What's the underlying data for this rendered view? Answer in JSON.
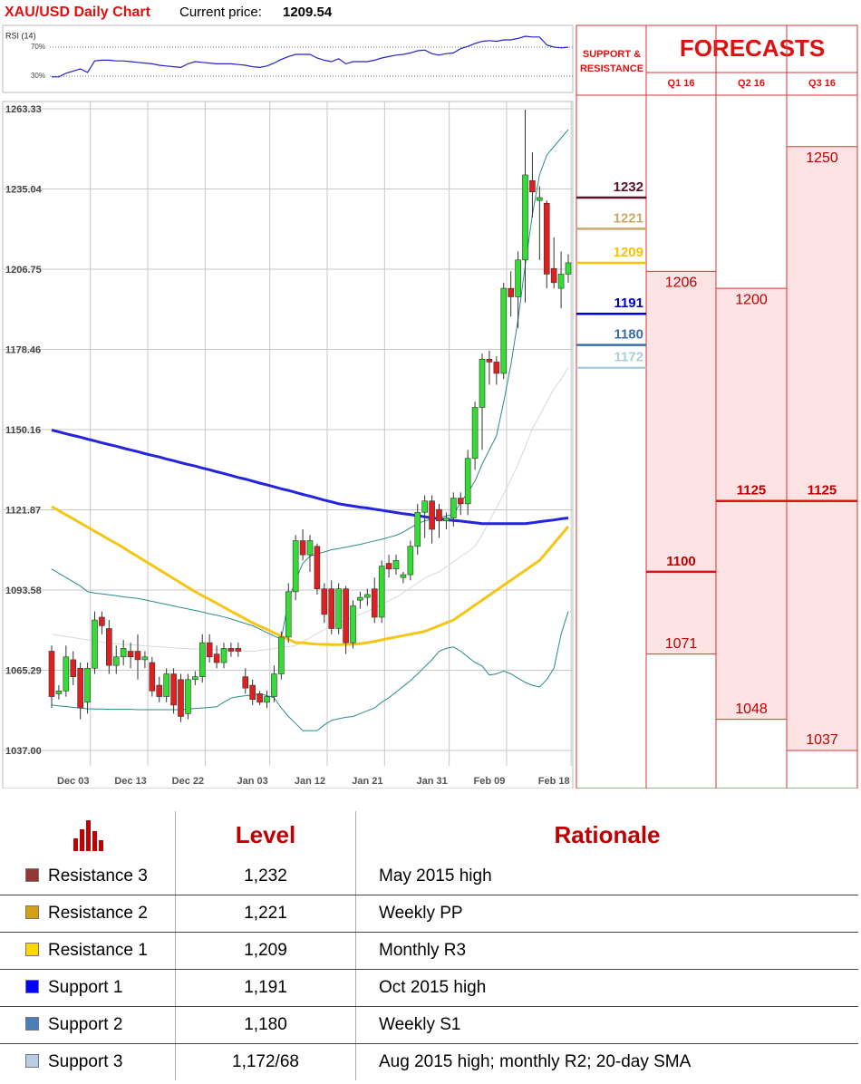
{
  "header": {
    "title": "XAU/USD Daily Chart",
    "price_label": "Current price:",
    "price": 1209.54
  },
  "chart_data": [
    {
      "type": "candlestick",
      "categories": [
        null,
        null,
        null,
        "Dec 03",
        null,
        null,
        null,
        null,
        null,
        null,
        null,
        "Dec 13",
        null,
        null,
        null,
        null,
        null,
        null,
        null,
        "Dec 22",
        null,
        null,
        null,
        null,
        null,
        null,
        null,
        null,
        "Jan 03",
        null,
        null,
        null,
        null,
        null,
        null,
        null,
        "Jan 12",
        null,
        null,
        null,
        null,
        null,
        null,
        null,
        "Jan 21",
        null,
        null,
        null,
        null,
        null,
        null,
        null,
        null,
        "Jan 31",
        null,
        null,
        null,
        null,
        null,
        null,
        null,
        "Feb 09",
        null,
        null,
        null,
        null,
        null,
        null,
        null,
        null,
        "Feb 18",
        null,
        null
      ],
      "open": [
        1072,
        1057,
        1058,
        1069,
        1066,
        1054,
        1066,
        1084,
        1080,
        1067,
        1070,
        1072,
        1072,
        1069,
        1068,
        1060,
        1056,
        1064,
        1062,
        1050,
        1062,
        1063,
        1075,
        1071,
        1068,
        1073,
        1073,
        1063,
        1060,
        1057,
        1054,
        1056,
        1064,
        1077,
        1093,
        1111,
        1106,
        1109,
        1094,
        1094,
        1080,
        1094,
        1075,
        1090,
        1091,
        1094,
        1084,
        1103,
        1101,
        1098,
        1099,
        1109,
        1121,
        1125,
        1122,
        1118,
        1119,
        1126,
        1124,
        1140,
        1158,
        1175,
        1174,
        1170,
        1200,
        1197,
        1210,
        1238,
        1231,
        1230,
        1207,
        1200,
        1205
      ],
      "high": [
        1074,
        1060,
        1074,
        1072,
        1068,
        1068,
        1086,
        1086,
        1083,
        1074,
        1076,
        1075,
        1078,
        1072,
        1070,
        1063,
        1066,
        1066,
        1064,
        1064,
        1065,
        1078,
        1078,
        1074,
        1075,
        1075,
        1075,
        1066,
        1062,
        1058,
        1058,
        1067,
        1079,
        1096,
        1113,
        1115,
        1113,
        1110,
        1096,
        1097,
        1096,
        1095,
        1090,
        1093,
        1094,
        1098,
        1104,
        1106,
        1106,
        1100,
        1111,
        1124,
        1127,
        1127,
        1124,
        1121,
        1128,
        1128,
        1143,
        1160,
        1177,
        1178,
        1176,
        1202,
        1206,
        1213,
        1263,
        1248,
        1236,
        1231,
        1218,
        1213,
        1212
      ],
      "low": [
        1052,
        1055,
        1056,
        1060,
        1048,
        1050,
        1064,
        1078,
        1064,
        1064,
        1067,
        1066,
        1062,
        1066,
        1056,
        1054,
        1054,
        1050,
        1047,
        1048,
        1060,
        1061,
        1068,
        1066,
        1066,
        1070,
        1070,
        1057,
        1053,
        1053,
        1052,
        1054,
        1062,
        1075,
        1090,
        1104,
        1100,
        1092,
        1082,
        1078,
        1078,
        1071,
        1073,
        1087,
        1088,
        1082,
        1082,
        1098,
        1099,
        1096,
        1097,
        1106,
        1112,
        1110,
        1112,
        1115,
        1116,
        1120,
        1120,
        1136,
        1143,
        1166,
        1166,
        1168,
        1190,
        1186,
        1195,
        1225,
        1210,
        1200,
        1200,
        1193,
        1202
      ],
      "close": [
        1056,
        1058,
        1070,
        1063,
        1052,
        1066,
        1083,
        1081,
        1067,
        1070,
        1073,
        1070,
        1069,
        1070,
        1058,
        1056,
        1064,
        1053,
        1049,
        1062,
        1063,
        1075,
        1070,
        1068,
        1073,
        1072,
        1072,
        1059,
        1055,
        1054,
        1056,
        1064,
        1077,
        1093,
        1111,
        1106,
        1111,
        1094,
        1085,
        1080,
        1094,
        1075,
        1088,
        1091,
        1092,
        1084,
        1102,
        1101,
        1104,
        1099,
        1109,
        1121,
        1125,
        1115,
        1118,
        1119,
        1126,
        1124,
        1140,
        1158,
        1175,
        1174,
        1170,
        1200,
        1197,
        1210,
        1240,
        1234,
        1232,
        1205,
        1202,
        1205,
        1209
      ],
      "up_color": "#33dd33",
      "down_color": "#e02020",
      "lines": [
        {
          "color": "#d9d9d9",
          "width": 1,
          "values": [
            1078,
            1077.6,
            1077.2,
            1076.8,
            1076.4,
            1076,
            1075.6,
            1075.2,
            1074.8,
            1074.6,
            1074.4,
            1074.3,
            1074.1,
            1073.9,
            1073.7,
            1073.6,
            1073.4,
            1073.2,
            1073,
            1072.9,
            1072.8,
            1072.7,
            1072.6,
            1072.5,
            1072.4,
            1072.3,
            1072.2,
            1072.1,
            1072,
            1072.3,
            1072.6,
            1072.9,
            1073.3,
            1073.6,
            1074,
            1075.4,
            1076.8,
            1078.2,
            1079.6,
            1081,
            1082,
            1083,
            1084,
            1085,
            1086,
            1087.3,
            1088.5,
            1089.8,
            1091,
            1092.7,
            1094.4,
            1096.1,
            1097.8,
            1099,
            1100,
            1101.8,
            1103.6,
            1105.4,
            1107,
            1109,
            1113,
            1118,
            1122.5,
            1127.5,
            1132.5,
            1138,
            1144,
            1150.5,
            1155,
            1160,
            1164.5,
            1168,
            1172
          ]
        },
        {
          "color": "#2a8a8a",
          "width": 1,
          "values": [
            1101,
            1099.5,
            1098,
            1096.5,
            1095,
            1093,
            1092.5,
            1092.2,
            1091.9,
            1091.6,
            1091.2,
            1090.9,
            1090.6,
            1090.1,
            1089.6,
            1089,
            1088.5,
            1088,
            1087.4,
            1086.9,
            1086.4,
            1085.8,
            1085.2,
            1084.7,
            1084.1,
            1083.4,
            1082.6,
            1081.8,
            1081,
            1079.8,
            1078.6,
            1077.4,
            1076.2,
            1090,
            1097,
            1103,
            1105.5,
            1106.3,
            1107,
            1107.8,
            1108.2,
            1108.7,
            1109.2,
            1109.7,
            1110.3,
            1110.9,
            1111.5,
            1112.2,
            1112.9,
            1114,
            1115.5,
            1117,
            1118,
            1118.6,
            1119.2,
            1119.7,
            1120.3,
            1124.5,
            1128,
            1132,
            1138,
            1143,
            1148,
            1160,
            1173,
            1189,
            1208,
            1226,
            1240,
            1247,
            1250,
            1253,
            1256
          ]
        },
        {
          "color": "#2a8a8a",
          "width": 1,
          "values": [
            1053,
            1052.7,
            1052.5,
            1052.2,
            1052,
            1051.7,
            1051.6,
            1051.6,
            1051.5,
            1051.5,
            1051.5,
            1051.5,
            1051.4,
            1051.4,
            1051.4,
            1051.4,
            1051.4,
            1051.4,
            1051.4,
            1051.6,
            1051.8,
            1052,
            1052.2,
            1052.4,
            1054,
            1055.5,
            1056,
            1056.3,
            1056.6,
            1057,
            1056.3,
            1055.6,
            1052,
            1049,
            1046.5,
            1044,
            1044,
            1044,
            1046,
            1047.6,
            1048.2,
            1048.7,
            1049,
            1050,
            1051,
            1052,
            1054,
            1055.6,
            1057.6,
            1059.6,
            1061.6,
            1064,
            1066.5,
            1069,
            1072,
            1073,
            1073.5,
            1072,
            1070,
            1068,
            1066.8,
            1063.6,
            1064,
            1065,
            1064,
            1062.5,
            1061,
            1060,
            1059.4,
            1062,
            1066,
            1078,
            1086
          ]
        },
        {
          "color": "#f5c518",
          "width": 3,
          "values": [
            1123,
            1121.6,
            1120.1,
            1118.7,
            1117.2,
            1115.8,
            1114.3,
            1112.9,
            1111.4,
            1110,
            1108.5,
            1106.9,
            1105.4,
            1103.8,
            1102.3,
            1100.7,
            1099.2,
            1097.6,
            1096.1,
            1094.5,
            1093,
            1091.6,
            1090.3,
            1088.9,
            1087.5,
            1086.1,
            1084.8,
            1083.4,
            1082,
            1080.8,
            1079.7,
            1078.5,
            1077.3,
            1076.2,
            1075,
            1075,
            1074.7,
            1074.5,
            1074.4,
            1074.3,
            1074.3,
            1074.4,
            1074.5,
            1074.7,
            1075,
            1075.5,
            1076,
            1076.5,
            1077,
            1077.5,
            1078,
            1078.5,
            1079,
            1080,
            1081,
            1082,
            1083,
            1084.8,
            1086.5,
            1088.3,
            1090,
            1091.8,
            1093.5,
            1095.3,
            1097,
            1098.8,
            1100.5,
            1102.3,
            1104,
            1107,
            1110,
            1113,
            1116
          ]
        },
        {
          "color": "#2424e0",
          "width": 3,
          "values": [
            1150,
            1149.4,
            1148.7,
            1148.1,
            1147.5,
            1146.8,
            1146.2,
            1145.5,
            1144.9,
            1144.3,
            1143.6,
            1143,
            1142.4,
            1141.7,
            1141.1,
            1140.5,
            1139.8,
            1139.2,
            1138.5,
            1137.9,
            1137.3,
            1136.6,
            1136,
            1135.3,
            1134.7,
            1134,
            1133.3,
            1132.7,
            1132,
            1131.3,
            1130.7,
            1130,
            1129.3,
            1128.7,
            1128,
            1127.3,
            1126.7,
            1126,
            1125.3,
            1124.7,
            1124,
            1123.6,
            1123.2,
            1122.8,
            1122.5,
            1122.1,
            1121.7,
            1121.3,
            1120.9,
            1120.5,
            1120.2,
            1119.8,
            1119.4,
            1119,
            1118.7,
            1118.4,
            1118.1,
            1117.9,
            1117.6,
            1117.3,
            1117,
            1117,
            1117,
            1117,
            1117,
            1117,
            1117,
            1117.3,
            1117.7,
            1118,
            1118.3,
            1118.7,
            1119
          ]
        }
      ],
      "ylim": [
        1037,
        1263.33
      ],
      "yticks": [
        {
          "value": 1037,
          "label": "1037.00"
        },
        1065.29,
        1093.58,
        1121.87,
        1150.16,
        1178.46,
        1206.75,
        1235.04,
        1263.33
      ],
      "grid": true,
      "levels_title": "SUPPORT & RESISTANCE",
      "levels": [
        {
          "value": 1232,
          "color": "#5b0f2a"
        },
        {
          "value": 1221,
          "color": "#c9a86b"
        },
        {
          "value": 1209,
          "color": "#f5c400"
        },
        {
          "value": 1191,
          "color": "#0000cc"
        },
        {
          "value": 1180,
          "color": "#3a6ea5"
        },
        {
          "value": 1172,
          "color": "#a9d0dc"
        }
      ],
      "forecasts_title": "FORECASTS",
      "forecasts": [
        {
          "quarter": "Q1 16",
          "high": 1206,
          "median": 1100,
          "low": 1071
        },
        {
          "quarter": "Q2 16",
          "high": 1200,
          "median": 1125,
          "low": 1048
        },
        {
          "quarter": "Q3 16",
          "high": 1250,
          "median": 1125,
          "low": 1037
        }
      ]
    },
    {
      "type": "line",
      "title": "RSI (14)",
      "color": "#2222cc",
      "values": [
        29,
        29,
        34,
        37,
        40,
        35,
        51,
        52,
        52,
        51,
        51,
        50,
        49,
        48,
        47,
        45,
        44,
        43,
        42,
        47,
        50,
        49,
        48,
        47,
        47,
        47,
        46,
        45,
        43,
        42,
        44,
        48,
        53,
        57,
        60,
        60,
        60,
        55,
        52,
        50,
        54,
        47,
        50,
        50,
        50,
        52,
        55,
        57,
        59,
        60,
        62,
        65,
        66,
        61,
        59,
        61,
        62,
        68,
        71,
        75,
        78,
        79,
        78,
        80,
        80,
        82,
        85,
        84,
        84,
        73,
        70,
        69,
        70
      ],
      "ylim": [
        10,
        100
      ],
      "yticks": [
        {
          "value": 30,
          "label": "30%"
        },
        {
          "value": 70,
          "label": "70%"
        }
      ]
    }
  ],
  "table": {
    "columns": [
      "Level",
      "Rationale"
    ],
    "rows": [
      {
        "name": "Resistance 3",
        "color": "#953735",
        "level": "1,232",
        "rationale": "May 2015 high"
      },
      {
        "name": "Resistance 2",
        "color": "#d4a017",
        "level": "1,221",
        "rationale": "Weekly PP"
      },
      {
        "name": "Resistance 1",
        "color": "#ffd700",
        "level": "1,209",
        "rationale": "Monthly R3"
      },
      {
        "name": "Support 1",
        "color": "#0000ff",
        "level": "1,191",
        "rationale": "Oct 2015 high"
      },
      {
        "name": "Support 2",
        "color": "#4a7ebb",
        "level": "1,180",
        "rationale": "Weekly S1"
      },
      {
        "name": "Support 3",
        "color": "#b8cce4",
        "level": "1,172/68",
        "rationale": "Aug 2015 high; monthly R2; 20-day SMA"
      }
    ]
  }
}
